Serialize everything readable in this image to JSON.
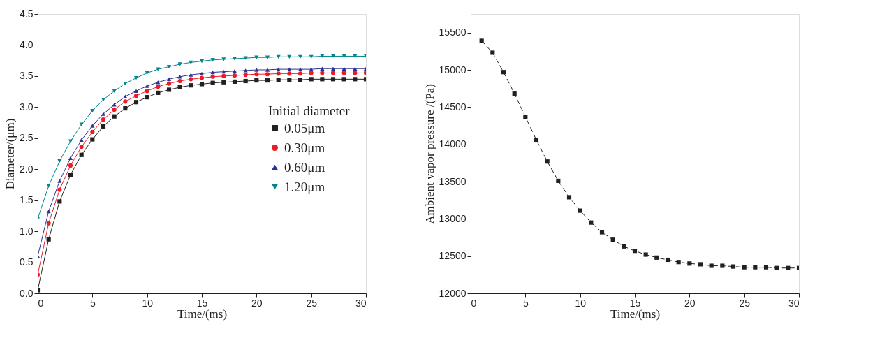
{
  "chart_data": [
    {
      "type": "line",
      "xlabel": "Time/(ms)",
      "ylabel": "Diameter/(μm)",
      "legend_title": "Initial diameter",
      "legend": "right",
      "grid": false,
      "line_style": "solid",
      "xlim": [
        0,
        30
      ],
      "xticks": [
        0,
        5,
        10,
        15,
        20,
        25,
        30
      ],
      "ylim": [
        0,
        4.5
      ],
      "yticks": [
        {
          "value": 0,
          "label": "0.0"
        },
        0.5,
        {
          "value": 1,
          "label": "1.0"
        },
        1.5,
        {
          "value": 2,
          "label": "2.0"
        },
        2.5,
        {
          "value": 3,
          "label": "3.0"
        },
        3.5,
        {
          "value": 4,
          "label": "4.0"
        },
        4.5
      ],
      "x": [
        0,
        1,
        2,
        3,
        4,
        5,
        6,
        7,
        8,
        9,
        10,
        11,
        12,
        13,
        14,
        15,
        16,
        17,
        18,
        19,
        20,
        21,
        22,
        23,
        24,
        25,
        26,
        27,
        28,
        29,
        30
      ],
      "series": [
        {
          "name": "0.05μm",
          "color": "#231f20",
          "marker": "square",
          "values": [
            0.05,
            0.87,
            1.48,
            1.91,
            2.23,
            2.48,
            2.69,
            2.85,
            2.98,
            3.08,
            3.16,
            3.23,
            3.28,
            3.32,
            3.35,
            3.37,
            3.39,
            3.4,
            3.41,
            3.42,
            3.43,
            3.43,
            3.44,
            3.44,
            3.44,
            3.45,
            3.45,
            3.45,
            3.45,
            3.45,
            3.45
          ]
        },
        {
          "name": "0.30μm",
          "color": "#ed1c24",
          "marker": "circle",
          "values": [
            0.3,
            1.13,
            1.67,
            2.06,
            2.36,
            2.6,
            2.8,
            2.96,
            3.09,
            3.18,
            3.26,
            3.33,
            3.38,
            3.42,
            3.45,
            3.47,
            3.49,
            3.5,
            3.51,
            3.52,
            3.53,
            3.53,
            3.54,
            3.54,
            3.54,
            3.55,
            3.55,
            3.55,
            3.55,
            3.55,
            3.55
          ]
        },
        {
          "name": "0.60μm",
          "color": "#2e3192",
          "marker": "triangle",
          "values": [
            0.6,
            1.32,
            1.81,
            2.18,
            2.47,
            2.7,
            2.89,
            3.04,
            3.17,
            3.26,
            3.34,
            3.4,
            3.45,
            3.49,
            3.52,
            3.54,
            3.56,
            3.57,
            3.58,
            3.59,
            3.6,
            3.6,
            3.61,
            3.61,
            3.61,
            3.61,
            3.62,
            3.62,
            3.62,
            3.62,
            3.62
          ]
        },
        {
          "name": "1.20μm",
          "color": "#00868b",
          "marker": "triangle-down",
          "values": [
            1.2,
            1.73,
            2.13,
            2.45,
            2.72,
            2.94,
            3.12,
            3.26,
            3.38,
            3.47,
            3.55,
            3.61,
            3.65,
            3.69,
            3.72,
            3.74,
            3.76,
            3.77,
            3.78,
            3.79,
            3.8,
            3.8,
            3.81,
            3.81,
            3.81,
            3.81,
            3.82,
            3.82,
            3.82,
            3.82,
            3.82
          ]
        }
      ]
    },
    {
      "type": "line",
      "xlabel": "Time/(ms)",
      "ylabel": "Ambient vapor pressure /(Pa)",
      "legend": false,
      "grid": false,
      "line_style": "dashed",
      "marker": "square",
      "xlim": [
        0,
        30
      ],
      "xticks": [
        0,
        5,
        10,
        15,
        20,
        25,
        30
      ],
      "ylim": [
        12000,
        15750
      ],
      "yticks": [
        12000,
        12500,
        13000,
        13500,
        14000,
        14500,
        15000,
        15500
      ],
      "x": [
        1,
        2,
        3,
        4,
        5,
        6,
        7,
        8,
        9,
        10,
        11,
        12,
        13,
        14,
        15,
        16,
        17,
        18,
        19,
        20,
        21,
        22,
        23,
        24,
        25,
        26,
        27,
        28,
        29,
        30
      ],
      "series": [
        {
          "color": "#231f20",
          "values": [
            15390,
            15230,
            14970,
            14680,
            14370,
            14060,
            13770,
            13510,
            13290,
            13110,
            12950,
            12820,
            12720,
            12630,
            12570,
            12520,
            12480,
            12450,
            12420,
            12400,
            12390,
            12370,
            12370,
            12360,
            12350,
            12350,
            12350,
            12340,
            12340,
            12340
          ]
        }
      ]
    }
  ]
}
